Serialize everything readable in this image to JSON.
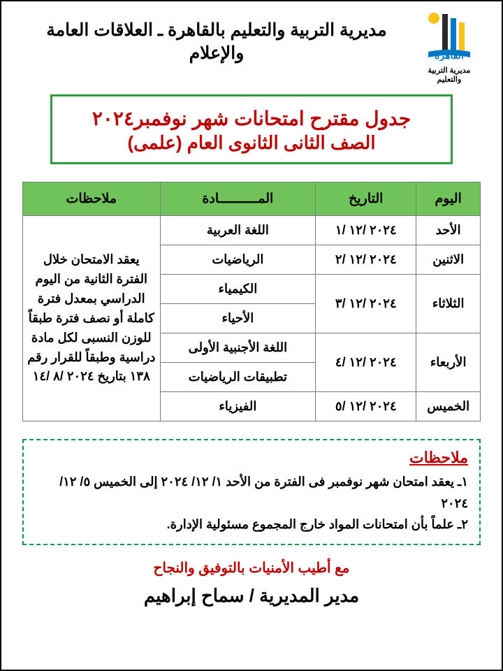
{
  "header": {
    "title": "مديرية التربية والتعليم بالقاهرة ـ العلاقات العامة والإعلام",
    "logo_caption": "مديرية التربية والتعليم"
  },
  "titleBox": {
    "line1": "جدول مقترح امتحانات شهر نوفمبر٢٠٢٤",
    "line2": "الصف الثانى الثانوى العام (علمى)"
  },
  "table": {
    "headers": {
      "day": "اليوم",
      "date": "التاريخ",
      "subject": "المــــــــــادة",
      "notes": "ملاحظات"
    },
    "rows": [
      {
        "day": "الأحد",
        "date": "٢٠٢٤ /١٢ /١",
        "subjects": [
          "اللغة العربية"
        ]
      },
      {
        "day": "الاثنين",
        "date": "٢٠٢٤ /١٢ /٢",
        "subjects": [
          "الرياضيات"
        ]
      },
      {
        "day": "الثلاثاء",
        "date": "٢٠٢٤ /١٢ /٣",
        "subjects": [
          "الكيمياء",
          "الأحياء"
        ]
      },
      {
        "day": "الأربعاء",
        "date": "٢٠٢٤ /١٢ /٤",
        "subjects": [
          "اللغة الأجنبية الأولى",
          "تطبيقات الرياضيات"
        ]
      },
      {
        "day": "الخميس",
        "date": "٢٠٢٤ /١٢ /٥",
        "subjects": [
          "الفيزياء"
        ]
      }
    ],
    "notes_merged": "يعقد الامتحان خلال الفترة الثانية من اليوم الدراسي بمعدل فترة كاملة أو نصف فترة طبقاً للوزن النسبى لكل مادة دراسية وطبقاً للقرار رقم ١٣٨ بتاريخ ٢٠٢٤ /٨ /١٤"
  },
  "notesBox": {
    "heading": "ملاحظات",
    "items": [
      "١ـ يعقد امتحان شهر نوفمبر فى الفترة من الأحد ١/ ١٢/ ٢٠٢٤ إلى الخميس ٥/ ١٢/ ٢٠٢٤",
      "٢ـ علماً بأن امتحانات المواد خارج المجموع مسئولية الإدارة."
    ]
  },
  "wish": "مع أطيب الأمنيات بالتوفيق والنجاح",
  "signature": "مدير المديرية / سماح إبراهيم",
  "colors": {
    "accent_green": "#2a9d3f",
    "header_bg": "#70c25a",
    "red": "#c00000",
    "dash_green": "#009a49",
    "border_gray": "#7a7a7a"
  }
}
